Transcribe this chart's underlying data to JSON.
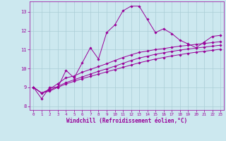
{
  "title": "",
  "xlabel": "Windchill (Refroidissement éolien,°C)",
  "ylabel": "",
  "xlim": [
    -0.5,
    23.4
  ],
  "ylim": [
    7.8,
    13.55
  ],
  "bg_color": "#cce8ef",
  "line_color": "#990099",
  "grid_color": "#aacdd6",
  "xticks": [
    0,
    1,
    2,
    3,
    4,
    5,
    6,
    7,
    8,
    9,
    10,
    11,
    12,
    13,
    14,
    15,
    16,
    17,
    18,
    19,
    20,
    21,
    22,
    23
  ],
  "yticks": [
    8,
    9,
    10,
    11,
    12,
    13
  ],
  "series": [
    [
      9.0,
      8.4,
      9.0,
      9.0,
      9.9,
      9.5,
      10.3,
      11.1,
      10.5,
      11.9,
      12.3,
      13.05,
      13.3,
      13.3,
      12.6,
      11.9,
      12.1,
      11.85,
      11.5,
      11.3,
      11.1,
      11.4,
      11.7,
      11.75
    ],
    [
      9.0,
      8.7,
      8.9,
      9.2,
      9.5,
      9.6,
      9.8,
      9.95,
      10.1,
      10.25,
      10.42,
      10.58,
      10.72,
      10.85,
      10.92,
      11.0,
      11.05,
      11.12,
      11.18,
      11.22,
      11.28,
      11.32,
      11.37,
      11.42
    ],
    [
      9.0,
      8.7,
      8.85,
      9.05,
      9.25,
      9.4,
      9.55,
      9.7,
      9.85,
      9.98,
      10.12,
      10.27,
      10.42,
      10.55,
      10.65,
      10.75,
      10.83,
      10.9,
      10.97,
      11.03,
      11.08,
      11.13,
      11.18,
      11.23
    ],
    [
      9.0,
      8.7,
      8.8,
      9.0,
      9.18,
      9.32,
      9.46,
      9.58,
      9.7,
      9.82,
      9.94,
      10.06,
      10.18,
      10.3,
      10.4,
      10.5,
      10.58,
      10.66,
      10.73,
      10.8,
      10.86,
      10.91,
      10.96,
      11.02
    ]
  ]
}
